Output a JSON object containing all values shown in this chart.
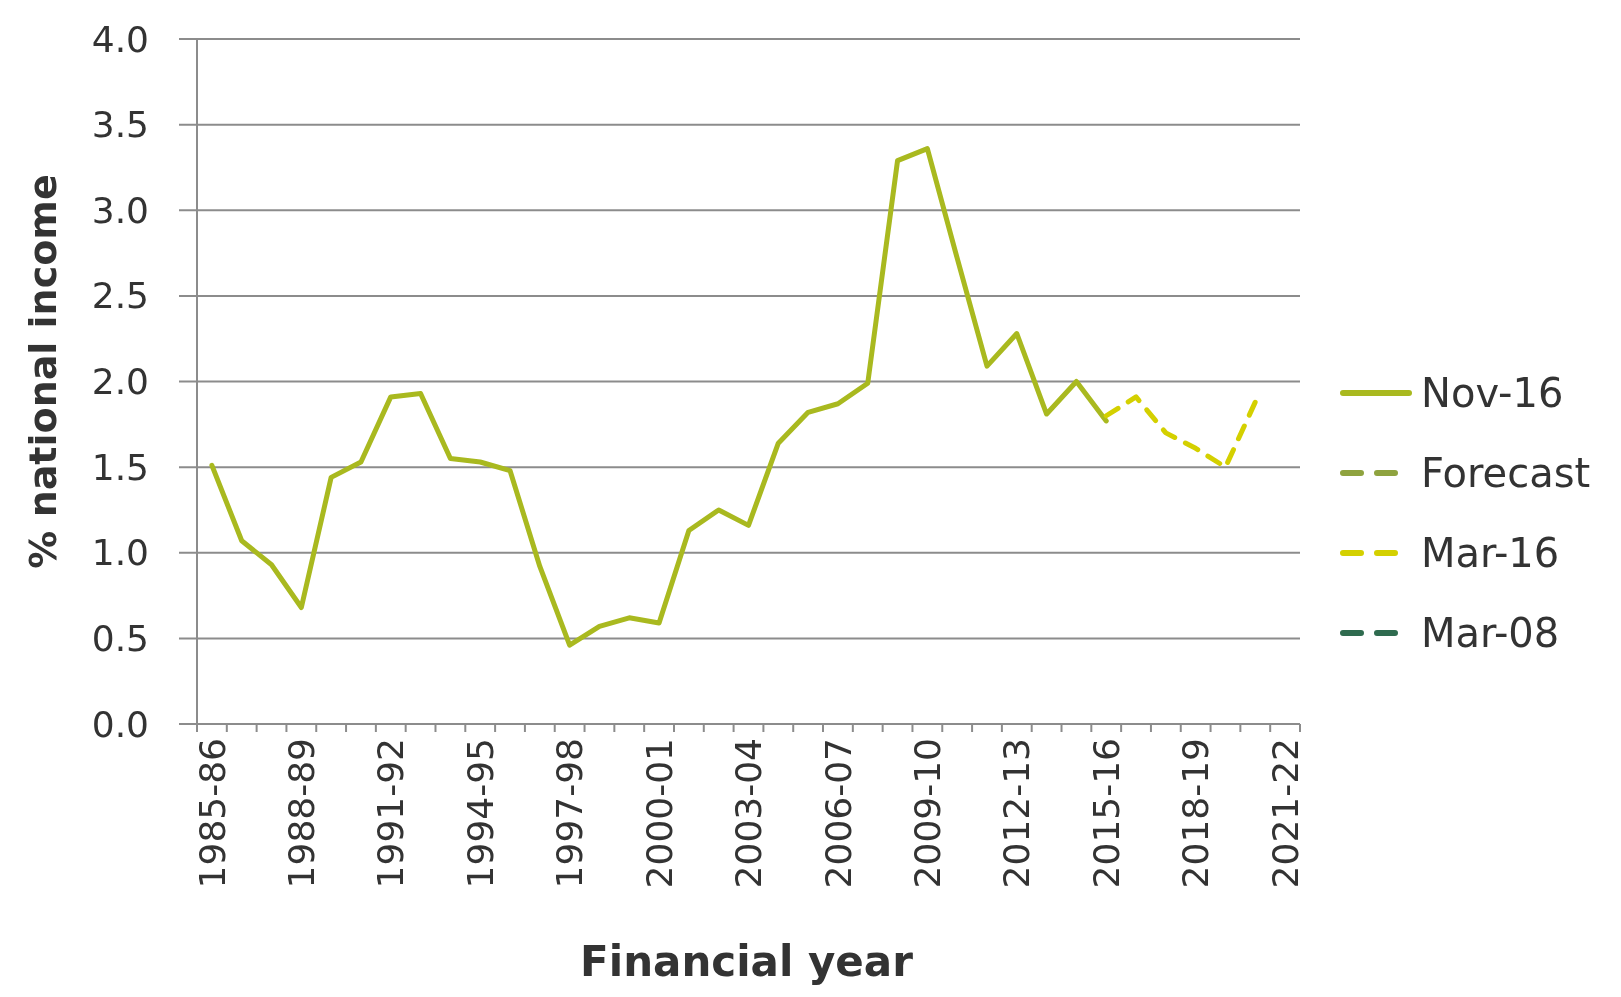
{
  "chart_data": {
    "type": "line",
    "xlabel": "Financial year",
    "ylabel": "% national income",
    "categories": [
      "1985-86",
      null,
      null,
      "1988-89",
      null,
      null,
      "1991-92",
      null,
      null,
      "1994-95",
      null,
      null,
      "1997-98",
      null,
      null,
      "2000-01",
      null,
      null,
      "2003-04",
      null,
      null,
      "2006-07",
      null,
      null,
      "2009-10",
      null,
      null,
      "2012-13",
      null,
      null,
      "2015-16",
      null,
      null,
      "2018-19",
      null,
      null,
      "2021-22"
    ],
    "series": [
      {
        "name": "Nov-16",
        "color": "#a9b91f",
        "line_style": "solid",
        "values": [
          1.51,
          1.07,
          0.93,
          0.68,
          1.44,
          1.53,
          1.91,
          1.93,
          1.55,
          1.53,
          1.48,
          0.92,
          0.46,
          0.57,
          0.62,
          0.59,
          1.13,
          1.25,
          1.16,
          1.64,
          1.82,
          1.87,
          1.99,
          3.29,
          3.36,
          2.72,
          2.09,
          2.28,
          1.81,
          2.0,
          1.77,
          null,
          null,
          null,
          null,
          null,
          null
        ]
      },
      {
        "name": "Forecast",
        "color": "#8fa33f",
        "line_style": "dashed",
        "values": [
          null,
          null,
          null,
          null,
          null,
          null,
          null,
          null,
          null,
          null,
          null,
          null,
          null,
          null,
          null,
          null,
          null,
          null,
          null,
          null,
          null,
          null,
          null,
          null,
          null,
          null,
          null,
          null,
          null,
          null,
          null,
          null,
          null,
          null,
          null,
          null,
          null
        ]
      },
      {
        "name": "Mar-16",
        "color": "#d4d000",
        "line_style": "dashed",
        "values": [
          null,
          null,
          null,
          null,
          null,
          null,
          null,
          null,
          null,
          null,
          null,
          null,
          null,
          null,
          null,
          null,
          null,
          null,
          null,
          null,
          null,
          null,
          null,
          null,
          null,
          null,
          null,
          null,
          null,
          null,
          1.8,
          1.91,
          1.7,
          1.61,
          1.5,
          1.88,
          null
        ]
      },
      {
        "name": "Mar-08",
        "color": "#2f6b4f",
        "line_style": "dashed",
        "values": [
          null,
          null,
          null,
          null,
          null,
          null,
          null,
          null,
          null,
          null,
          null,
          null,
          null,
          null,
          null,
          null,
          null,
          null,
          null,
          null,
          null,
          null,
          null,
          null,
          null,
          null,
          null,
          null,
          null,
          null,
          null,
          null,
          null,
          null,
          null,
          null,
          null
        ]
      }
    ],
    "ylim": [
      0,
      4
    ],
    "yticks": [
      {
        "value": 0,
        "label": "0.0"
      },
      {
        "value": 0.5,
        "label": "0.5"
      },
      {
        "value": 1,
        "label": "1.0"
      },
      {
        "value": 1.5,
        "label": "1.5"
      },
      {
        "value": 2,
        "label": "2.0"
      },
      {
        "value": 2.5,
        "label": "2.5"
      },
      {
        "value": 3,
        "label": "3.0"
      },
      {
        "value": 3.5,
        "label": "3.5"
      },
      {
        "value": 4,
        "label": "4.0"
      }
    ],
    "grid": "y",
    "legend": "right",
    "marker": "none"
  }
}
